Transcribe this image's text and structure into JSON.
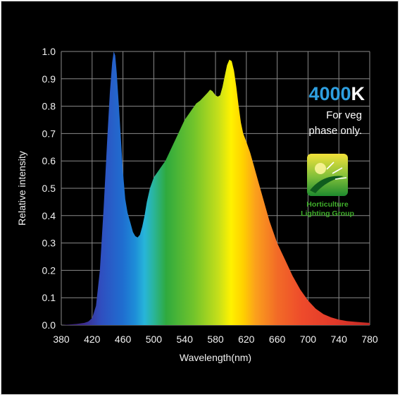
{
  "chart_data": {
    "type": "area",
    "xlabel": "Wavelength(nm)",
    "ylabel": "Relative intensity",
    "xlim": [
      380,
      780
    ],
    "ylim": [
      0,
      1
    ],
    "x_ticks": [
      "380",
      "420",
      "460",
      "500",
      "540",
      "580",
      "620",
      "660",
      "700",
      "740",
      "780"
    ],
    "y_ticks": [
      "0.0",
      "0.1",
      "0.2",
      "0.3",
      "0.4",
      "0.5",
      "0.6",
      "0.7",
      "0.8",
      "0.9",
      "1.0"
    ],
    "grid": true,
    "fill": "visible-spectrum gradient",
    "series": [
      {
        "x": [
          380,
          390,
          400,
          410,
          415,
          420,
          425,
          430,
          435,
          440,
          443,
          446,
          448,
          450,
          452,
          455,
          458,
          460,
          463,
          466,
          470,
          473,
          476,
          479,
          482,
          485,
          488,
          491,
          495,
          500,
          505,
          510,
          515,
          520,
          525,
          530,
          535,
          540,
          545,
          550,
          555,
          560,
          565,
          570,
          573,
          576,
          580,
          583,
          586,
          589,
          592,
          595,
          598,
          601,
          604,
          607,
          610,
          613,
          616,
          620,
          625,
          630,
          635,
          640,
          645,
          650,
          660,
          670,
          680,
          690,
          700,
          710,
          720,
          730,
          740,
          750,
          760,
          770,
          780
        ],
        "y": [
          0.0,
          0.002,
          0.004,
          0.008,
          0.013,
          0.025,
          0.07,
          0.2,
          0.43,
          0.7,
          0.85,
          0.96,
          1.0,
          0.985,
          0.92,
          0.79,
          0.65,
          0.56,
          0.46,
          0.41,
          0.37,
          0.34,
          0.325,
          0.32,
          0.33,
          0.36,
          0.4,
          0.45,
          0.5,
          0.54,
          0.56,
          0.58,
          0.6,
          0.63,
          0.66,
          0.69,
          0.72,
          0.75,
          0.77,
          0.79,
          0.81,
          0.82,
          0.835,
          0.85,
          0.86,
          0.855,
          0.84,
          0.835,
          0.84,
          0.87,
          0.91,
          0.95,
          0.97,
          0.965,
          0.93,
          0.87,
          0.8,
          0.74,
          0.7,
          0.67,
          0.63,
          0.58,
          0.53,
          0.48,
          0.43,
          0.38,
          0.3,
          0.24,
          0.18,
          0.13,
          0.09,
          0.06,
          0.04,
          0.028,
          0.02,
          0.015,
          0.012,
          0.01,
          0.008
        ]
      }
    ]
  },
  "badge": {
    "cct_number": "4000",
    "cct_unit": "K",
    "note_line1": "For veg",
    "note_line2": "phase only.",
    "number_color": "#2e9fe0",
    "unit_color": "#ffffff"
  },
  "logo": {
    "line1": "Horticulture",
    "line2": "Lighting Group",
    "color": "#3fae2a"
  }
}
